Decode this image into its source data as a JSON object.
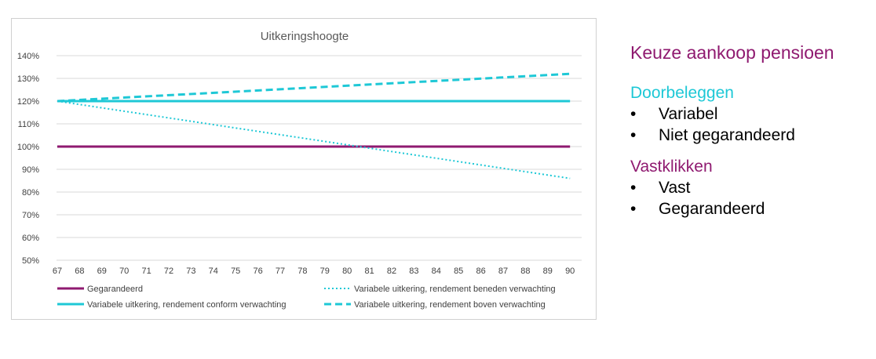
{
  "chart_data": {
    "type": "line",
    "title": "Uitkeringshoogte",
    "x": [
      67,
      68,
      69,
      70,
      71,
      72,
      73,
      74,
      75,
      76,
      77,
      78,
      79,
      80,
      81,
      82,
      83,
      84,
      85,
      86,
      87,
      88,
      89,
      90
    ],
    "y_ticks": [
      "50%",
      "60%",
      "70%",
      "80%",
      "90%",
      "100%",
      "110%",
      "120%",
      "130%",
      "140%"
    ],
    "ylim": [
      50,
      140
    ],
    "grid": true,
    "legend_position": "bottom",
    "series": [
      {
        "name": "Gegarandeerd",
        "color": "#8f1a70",
        "style": "solid",
        "start": 100,
        "end": 100
      },
      {
        "name": "Variabele uitkering, rendement beneden verwachting",
        "color": "#1ec8d6",
        "style": "dotted",
        "start": 120,
        "end": 86
      },
      {
        "name": "Variabele uitkering, rendement conform verwachting",
        "color": "#1ec8d6",
        "style": "solid",
        "start": 120,
        "end": 120
      },
      {
        "name": "Variabele uitkering, rendement boven verwachting",
        "color": "#1ec8d6",
        "style": "dashed",
        "start": 120,
        "end": 132
      }
    ]
  },
  "side": {
    "heading": "Keuze aankoop pensioen",
    "sections": [
      {
        "title": "Doorbeleggen",
        "items": [
          "Variabel",
          "Niet gegarandeerd"
        ]
      },
      {
        "title": "Vastklikken",
        "items": [
          "Vast",
          "Gegarandeerd"
        ]
      }
    ],
    "bullet": "•"
  }
}
